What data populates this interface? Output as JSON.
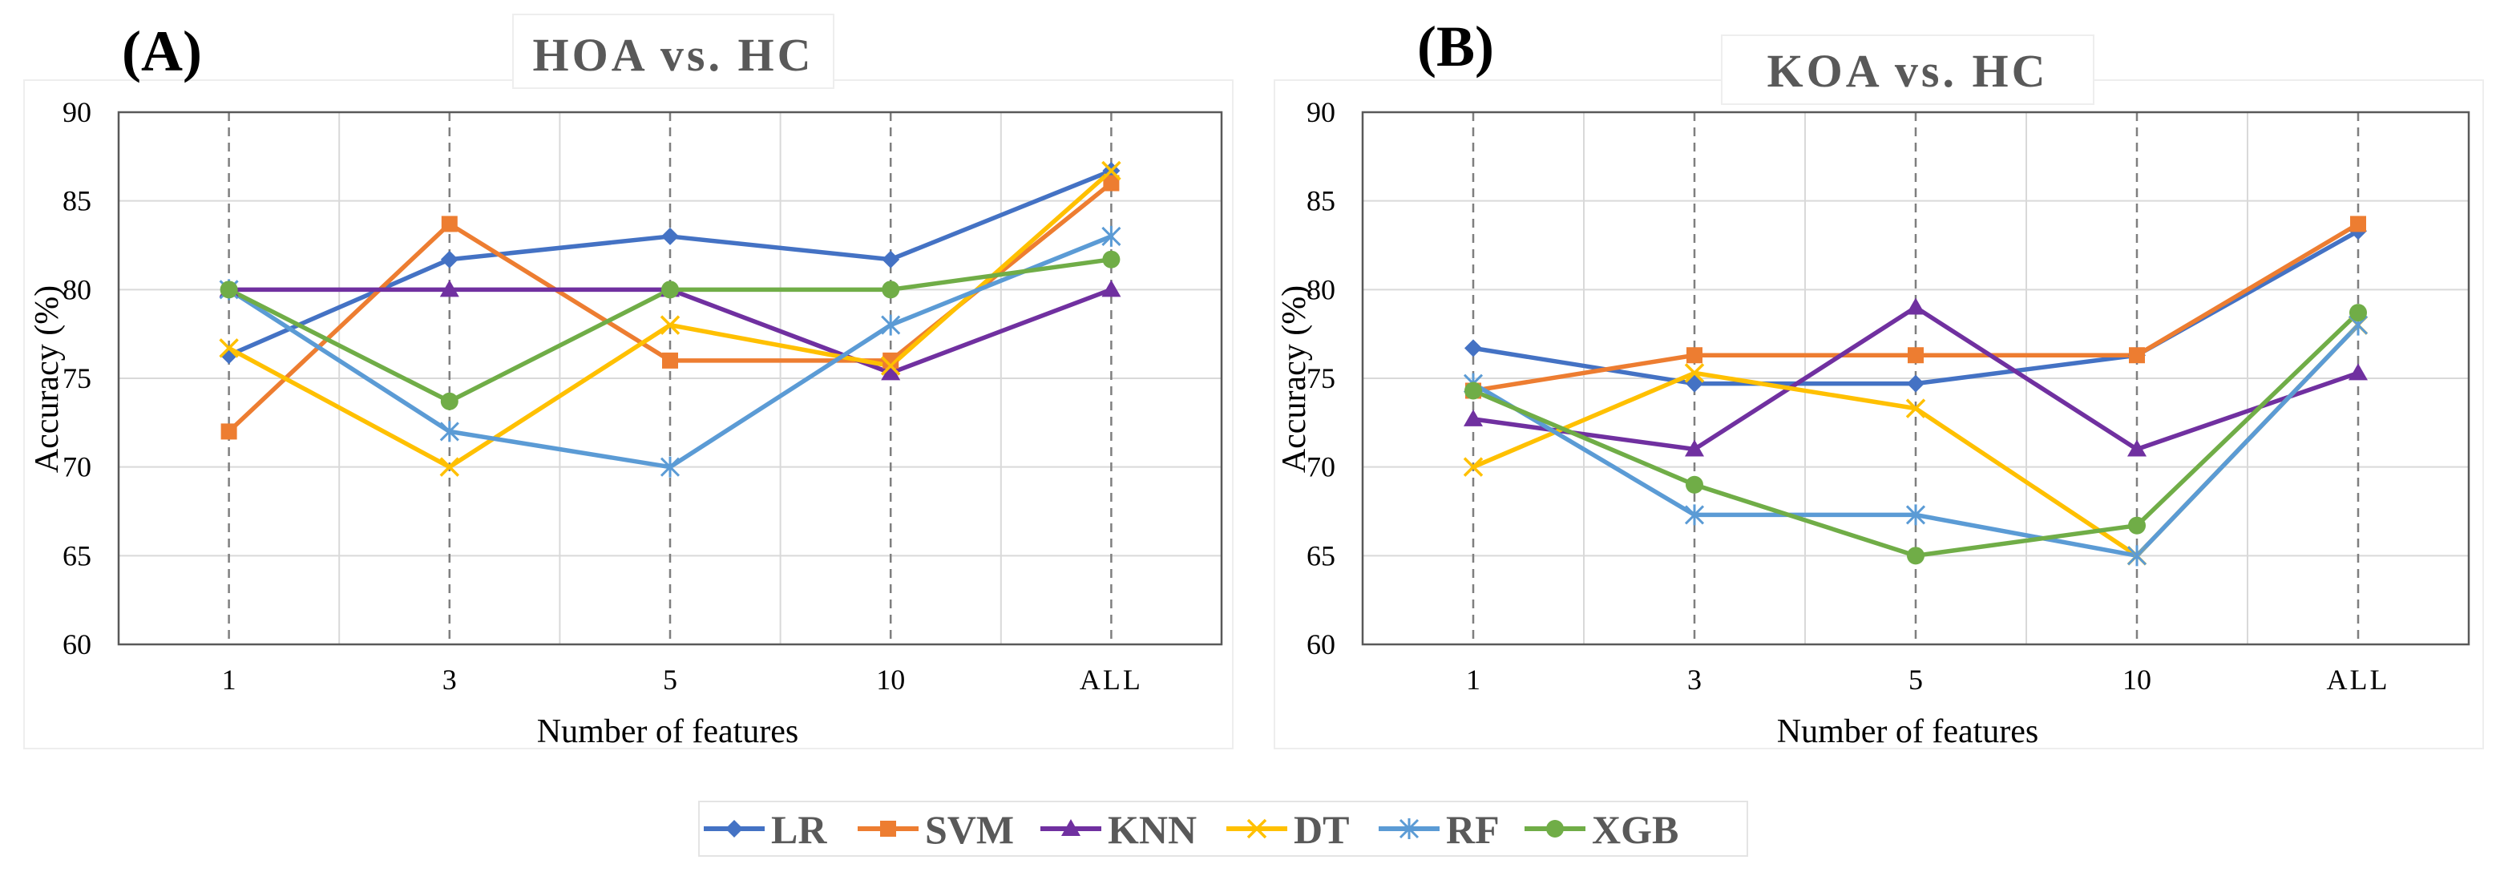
{
  "legend": [
    {
      "name": "LR",
      "color": "#4472C4",
      "marker": "diamond"
    },
    {
      "name": "SVM",
      "color": "#ED7D31",
      "marker": "square"
    },
    {
      "name": "KNN",
      "color": "#7030A0",
      "marker": "triangle"
    },
    {
      "name": "DT",
      "color": "#FFC000",
      "marker": "x"
    },
    {
      "name": "RF",
      "color": "#5B9BD5",
      "marker": "asterisk"
    },
    {
      "name": "XGB",
      "color": "#70AD47",
      "marker": "circle"
    }
  ],
  "chart_data": [
    {
      "type": "line",
      "panel_label": "(A)",
      "title": "HOA vs. HC",
      "xlabel": "Number of features",
      "ylabel": "Accuracy (%)",
      "categories": [
        "1",
        "3",
        "5",
        "10",
        "ALL"
      ],
      "ylim": [
        60,
        90
      ],
      "yticks": [
        "60",
        "65",
        "70",
        "75",
        "80",
        "85",
        "90"
      ],
      "grid": true,
      "series": [
        {
          "name": "LR",
          "values": [
            76.3,
            81.7,
            83.0,
            81.7,
            86.7
          ]
        },
        {
          "name": "SVM",
          "values": [
            72.0,
            83.7,
            76.0,
            76.0,
            86.0
          ]
        },
        {
          "name": "KNN",
          "values": [
            80.0,
            80.0,
            80.0,
            75.3,
            80.0
          ]
        },
        {
          "name": "DT",
          "values": [
            76.7,
            70.0,
            78.0,
            75.7,
            86.7
          ]
        },
        {
          "name": "RF",
          "values": [
            80.0,
            72.0,
            70.0,
            78.0,
            83.0
          ]
        },
        {
          "name": "XGB",
          "values": [
            80.0,
            73.7,
            80.0,
            80.0,
            81.7
          ]
        }
      ]
    },
    {
      "type": "line",
      "panel_label": "(B)",
      "title": "KOA vs. HC",
      "xlabel": "Number of features",
      "ylabel": "Accuracy (%)",
      "categories": [
        "1",
        "3",
        "5",
        "10",
        "ALL"
      ],
      "ylim": [
        60,
        90
      ],
      "yticks": [
        "60",
        "65",
        "70",
        "75",
        "80",
        "85",
        "90"
      ],
      "grid": true,
      "series": [
        {
          "name": "LR",
          "values": [
            76.7,
            74.7,
            74.7,
            76.3,
            83.3
          ]
        },
        {
          "name": "SVM",
          "values": [
            74.3,
            76.3,
            76.3,
            76.3,
            83.7
          ]
        },
        {
          "name": "KNN",
          "values": [
            72.7,
            71.0,
            79.0,
            71.0,
            75.3
          ]
        },
        {
          "name": "DT",
          "values": [
            70.0,
            75.3,
            73.3,
            65.0,
            78.0
          ]
        },
        {
          "name": "RF",
          "values": [
            74.7,
            67.3,
            67.3,
            65.0,
            78.0
          ]
        },
        {
          "name": "XGB",
          "values": [
            74.3,
            69.0,
            65.0,
            66.7,
            78.7
          ]
        }
      ]
    }
  ]
}
